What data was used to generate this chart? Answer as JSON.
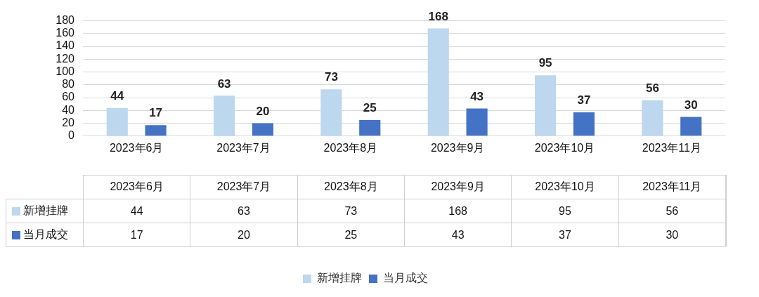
{
  "chart_data": [
    {
      "type": "bar",
      "categories": [
        "2023年6月",
        "2023年7月",
        "2023年8月",
        "2023年9月",
        "2023年10月",
        "2023年11月"
      ],
      "series": [
        {
          "name": "新增挂牌",
          "color": "#bdd7ee",
          "values": [
            44,
            63,
            73,
            168,
            95,
            56
          ],
          "value_labels": [
            "44",
            "63",
            "73",
            "168",
            "95",
            "56"
          ]
        },
        {
          "name": "当月成交",
          "color": "#4472c4",
          "values": [
            17,
            20,
            25,
            43,
            37,
            30
          ],
          "value_labels": [
            "17",
            "20",
            "25",
            "43",
            "37",
            "30"
          ]
        }
      ],
      "ylim": [
        0,
        180
      ],
      "yticks": [
        0,
        20,
        40,
        60,
        80,
        100,
        120,
        140,
        160,
        180
      ],
      "grid": "y",
      "legend": "bottom"
    },
    {
      "type": "other",
      "categories": [
        "2023年6月",
        "2023年7月",
        "2023年8月",
        "2023年9月",
        "2023年10月",
        "2023年11月"
      ],
      "series": [
        {
          "name": "新增挂牌",
          "color": "#bdd7ee",
          "values": [
            44,
            63,
            73,
            168,
            95,
            56
          ]
        },
        {
          "name": "当月成交",
          "color": "#4472c4",
          "values": [
            17,
            20,
            25,
            43,
            37,
            30
          ]
        }
      ],
      "data_labels": true
    }
  ]
}
